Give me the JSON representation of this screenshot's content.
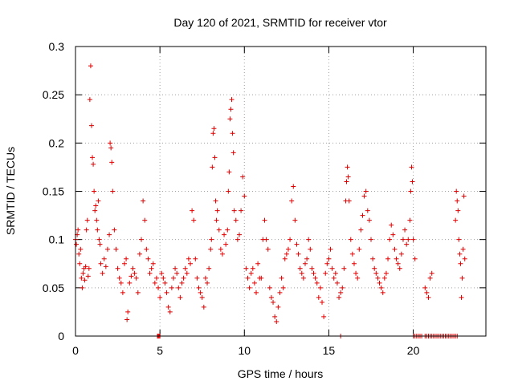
{
  "chart_data": {
    "type": "scatter",
    "title": "Day 120 of 2021, SRMTID for receiver vtor",
    "xlabel": "GPS time / hours",
    "ylabel": "SRMTID / TECUs",
    "xlim": [
      0,
      24.3
    ],
    "ylim": [
      0,
      0.3
    ],
    "x_ticks": [
      0,
      5,
      10,
      15,
      20
    ],
    "x_tick_labels": [
      "0",
      "5",
      "10",
      "15",
      "20"
    ],
    "y_ticks": [
      0,
      0.05,
      0.1,
      0.15,
      0.2,
      0.25,
      0.3
    ],
    "y_tick_labels": [
      "0",
      "0.05",
      "0.1",
      "0.15",
      "0.2",
      "0.25",
      "0.3"
    ],
    "grid": true,
    "marker": "+",
    "color": "#e00000",
    "series": [
      {
        "name": "SRMTID",
        "points": [
          [
            0.0,
            0.1
          ],
          [
            0.05,
            0.095
          ],
          [
            0.1,
            0.105
          ],
          [
            0.15,
            0.11
          ],
          [
            0.2,
            0.085
          ],
          [
            0.25,
            0.075
          ],
          [
            0.3,
            0.09
          ],
          [
            0.35,
            0.06
          ],
          [
            0.4,
            0.05
          ],
          [
            0.45,
            0.065
          ],
          [
            0.5,
            0.07
          ],
          [
            0.55,
            0.058
          ],
          [
            0.6,
            0.072
          ],
          [
            0.65,
            0.11
          ],
          [
            0.7,
            0.12
          ],
          [
            0.75,
            0.062
          ],
          [
            0.8,
            0.07
          ],
          [
            0.85,
            0.245
          ],
          [
            0.9,
            0.28
          ],
          [
            0.95,
            0.218
          ],
          [
            1.0,
            0.185
          ],
          [
            1.05,
            0.178
          ],
          [
            1.1,
            0.15
          ],
          [
            1.15,
            0.13
          ],
          [
            1.2,
            0.135
          ],
          [
            1.25,
            0.12
          ],
          [
            1.3,
            0.11
          ],
          [
            1.35,
            0.14
          ],
          [
            1.4,
            0.1
          ],
          [
            1.45,
            0.095
          ],
          [
            1.5,
            0.075
          ],
          [
            1.6,
            0.065
          ],
          [
            1.7,
            0.08
          ],
          [
            1.8,
            0.072
          ],
          [
            1.9,
            0.09
          ],
          [
            2.0,
            0.105
          ],
          [
            2.05,
            0.2
          ],
          [
            2.1,
            0.195
          ],
          [
            2.15,
            0.18
          ],
          [
            2.2,
            0.15
          ],
          [
            2.3,
            0.11
          ],
          [
            2.4,
            0.09
          ],
          [
            2.5,
            0.07
          ],
          [
            2.6,
            0.06
          ],
          [
            2.7,
            0.055
          ],
          [
            2.8,
            0.045
          ],
          [
            2.9,
            0.075
          ],
          [
            3.0,
            0.08
          ],
          [
            3.05,
            0.017
          ],
          [
            3.1,
            0.025
          ],
          [
            3.2,
            0.055
          ],
          [
            3.3,
            0.062
          ],
          [
            3.4,
            0.07
          ],
          [
            3.5,
            0.065
          ],
          [
            3.6,
            0.06
          ],
          [
            3.7,
            0.045
          ],
          [
            3.8,
            0.085
          ],
          [
            3.9,
            0.1
          ],
          [
            4.0,
            0.14
          ],
          [
            4.1,
            0.12
          ],
          [
            4.2,
            0.09
          ],
          [
            4.3,
            0.08
          ],
          [
            4.4,
            0.065
          ],
          [
            4.5,
            0.07
          ],
          [
            4.6,
            0.075
          ],
          [
            4.7,
            0.055
          ],
          [
            4.8,
            0.06
          ],
          [
            4.9,
            0.05
          ],
          [
            5.0,
            0.04
          ],
          [
            5.1,
            0.065
          ],
          [
            5.2,
            0.06
          ],
          [
            5.3,
            0.055
          ],
          [
            5.4,
            0.045
          ],
          [
            5.5,
            0.03
          ],
          [
            5.6,
            0.025
          ],
          [
            5.7,
            0.05
          ],
          [
            5.8,
            0.06
          ],
          [
            5.9,
            0.07
          ],
          [
            6.0,
            0.065
          ],
          [
            6.1,
            0.05
          ],
          [
            6.2,
            0.04
          ],
          [
            6.3,
            0.055
          ],
          [
            6.4,
            0.06
          ],
          [
            6.5,
            0.07
          ],
          [
            6.6,
            0.065
          ],
          [
            6.7,
            0.08
          ],
          [
            6.8,
            0.075
          ],
          [
            6.9,
            0.13
          ],
          [
            7.0,
            0.12
          ],
          [
            7.1,
            0.08
          ],
          [
            7.2,
            0.06
          ],
          [
            7.3,
            0.05
          ],
          [
            7.4,
            0.045
          ],
          [
            7.5,
            0.04
          ],
          [
            7.6,
            0.03
          ],
          [
            7.7,
            0.06
          ],
          [
            7.8,
            0.055
          ],
          [
            7.9,
            0.07
          ],
          [
            8.0,
            0.09
          ],
          [
            8.05,
            0.1
          ],
          [
            8.1,
            0.175
          ],
          [
            8.15,
            0.21
          ],
          [
            8.2,
            0.215
          ],
          [
            8.25,
            0.185
          ],
          [
            8.3,
            0.14
          ],
          [
            8.35,
            0.12
          ],
          [
            8.4,
            0.13
          ],
          [
            8.5,
            0.11
          ],
          [
            8.6,
            0.09
          ],
          [
            8.7,
            0.085
          ],
          [
            8.8,
            0.105
          ],
          [
            8.9,
            0.095
          ],
          [
            9.0,
            0.11
          ],
          [
            9.05,
            0.15
          ],
          [
            9.1,
            0.17
          ],
          [
            9.15,
            0.225
          ],
          [
            9.2,
            0.235
          ],
          [
            9.25,
            0.245
          ],
          [
            9.3,
            0.21
          ],
          [
            9.35,
            0.19
          ],
          [
            9.4,
            0.13
          ],
          [
            9.5,
            0.12
          ],
          [
            9.6,
            0.1
          ],
          [
            9.7,
            0.105
          ],
          [
            9.8,
            0.13
          ],
          [
            9.9,
            0.165
          ],
          [
            10.0,
            0.145
          ],
          [
            10.1,
            0.07
          ],
          [
            10.2,
            0.06
          ],
          [
            10.3,
            0.05
          ],
          [
            10.4,
            0.065
          ],
          [
            10.5,
            0.07
          ],
          [
            10.6,
            0.055
          ],
          [
            10.7,
            0.045
          ],
          [
            10.8,
            0.075
          ],
          [
            10.9,
            0.06
          ],
          [
            11.0,
            0.06
          ],
          [
            11.1,
            0.1
          ],
          [
            11.2,
            0.12
          ],
          [
            11.3,
            0.1
          ],
          [
            11.4,
            0.09
          ],
          [
            11.5,
            0.05
          ],
          [
            11.6,
            0.04
          ],
          [
            11.7,
            0.035
          ],
          [
            11.8,
            0.02
          ],
          [
            11.9,
            0.015
          ],
          [
            12.0,
            0.03
          ],
          [
            12.1,
            0.045
          ],
          [
            12.2,
            0.06
          ],
          [
            12.3,
            0.05
          ],
          [
            12.4,
            0.08
          ],
          [
            12.5,
            0.085
          ],
          [
            12.6,
            0.09
          ],
          [
            12.7,
            0.1
          ],
          [
            12.8,
            0.14
          ],
          [
            12.9,
            0.155
          ],
          [
            13.0,
            0.12
          ],
          [
            13.1,
            0.095
          ],
          [
            13.2,
            0.085
          ],
          [
            13.3,
            0.07
          ],
          [
            13.4,
            0.065
          ],
          [
            13.5,
            0.06
          ],
          [
            13.6,
            0.075
          ],
          [
            13.7,
            0.08
          ],
          [
            13.8,
            0.1
          ],
          [
            13.9,
            0.09
          ],
          [
            14.0,
            0.07
          ],
          [
            14.1,
            0.065
          ],
          [
            14.2,
            0.06
          ],
          [
            14.3,
            0.055
          ],
          [
            14.4,
            0.04
          ],
          [
            14.5,
            0.05
          ],
          [
            14.6,
            0.035
          ],
          [
            14.7,
            0.02
          ],
          [
            14.8,
            0.065
          ],
          [
            14.9,
            0.075
          ],
          [
            15.0,
            0.08
          ],
          [
            15.1,
            0.09
          ],
          [
            15.2,
            0.07
          ],
          [
            15.3,
            0.06
          ],
          [
            15.4,
            0.065
          ],
          [
            15.5,
            0.055
          ],
          [
            15.6,
            0.04
          ],
          [
            15.7,
            0.045
          ],
          [
            15.8,
            0.05
          ],
          [
            15.9,
            0.07
          ],
          [
            16.0,
            0.14
          ],
          [
            16.05,
            0.16
          ],
          [
            16.1,
            0.175
          ],
          [
            16.15,
            0.165
          ],
          [
            16.2,
            0.14
          ],
          [
            16.3,
            0.1
          ],
          [
            16.4,
            0.085
          ],
          [
            16.5,
            0.075
          ],
          [
            16.6,
            0.065
          ],
          [
            16.7,
            0.06
          ],
          [
            16.8,
            0.09
          ],
          [
            16.9,
            0.11
          ],
          [
            17.0,
            0.125
          ],
          [
            17.1,
            0.145
          ],
          [
            17.2,
            0.15
          ],
          [
            17.3,
            0.13
          ],
          [
            17.4,
            0.12
          ],
          [
            17.5,
            0.1
          ],
          [
            17.6,
            0.08
          ],
          [
            17.7,
            0.07
          ],
          [
            17.8,
            0.065
          ],
          [
            17.9,
            0.06
          ],
          [
            18.0,
            0.055
          ],
          [
            18.1,
            0.05
          ],
          [
            18.2,
            0.045
          ],
          [
            18.3,
            0.06
          ],
          [
            18.4,
            0.065
          ],
          [
            18.5,
            0.08
          ],
          [
            18.6,
            0.1
          ],
          [
            18.7,
            0.115
          ],
          [
            18.8,
            0.105
          ],
          [
            18.9,
            0.09
          ],
          [
            19.0,
            0.08
          ],
          [
            19.1,
            0.075
          ],
          [
            19.2,
            0.07
          ],
          [
            19.3,
            0.085
          ],
          [
            19.4,
            0.1
          ],
          [
            19.5,
            0.11
          ],
          [
            19.6,
            0.095
          ],
          [
            19.7,
            0.1
          ],
          [
            19.8,
            0.12
          ],
          [
            19.85,
            0.15
          ],
          [
            19.9,
            0.175
          ],
          [
            19.95,
            0.16
          ],
          [
            20.0,
            0.1
          ],
          [
            20.1,
            0.08
          ],
          [
            20.7,
            0.05
          ],
          [
            20.8,
            0.045
          ],
          [
            20.9,
            0.04
          ],
          [
            21.0,
            0.06
          ],
          [
            21.1,
            0.065
          ],
          [
            22.5,
            0.12
          ],
          [
            22.55,
            0.15
          ],
          [
            22.6,
            0.14
          ],
          [
            22.65,
            0.13
          ],
          [
            22.7,
            0.1
          ],
          [
            22.75,
            0.085
          ],
          [
            22.8,
            0.075
          ],
          [
            22.85,
            0.04
          ],
          [
            22.9,
            0.06
          ],
          [
            22.95,
            0.09
          ],
          [
            23.0,
            0.145
          ],
          [
            23.05,
            0.08
          ],
          [
            4.85,
            0.0
          ],
          [
            4.9,
            0.0
          ],
          [
            4.95,
            0.0
          ],
          [
            5.0,
            0.0
          ],
          [
            15.7,
            0.0
          ],
          [
            20.0,
            0.0
          ],
          [
            20.1,
            0.0
          ],
          [
            20.2,
            0.0
          ],
          [
            20.3,
            0.0
          ],
          [
            20.4,
            0.0
          ],
          [
            20.5,
            0.0
          ],
          [
            20.7,
            0.0
          ],
          [
            20.8,
            0.0
          ],
          [
            20.9,
            0.0
          ],
          [
            21.0,
            0.0
          ],
          [
            21.1,
            0.0
          ],
          [
            21.2,
            0.0
          ],
          [
            21.3,
            0.0
          ],
          [
            21.4,
            0.0
          ],
          [
            21.5,
            0.0
          ],
          [
            21.6,
            0.0
          ],
          [
            21.7,
            0.0
          ],
          [
            21.8,
            0.0
          ],
          [
            21.9,
            0.0
          ],
          [
            22.0,
            0.0
          ],
          [
            22.1,
            0.0
          ],
          [
            22.2,
            0.0
          ],
          [
            22.3,
            0.0
          ],
          [
            22.4,
            0.0
          ],
          [
            22.5,
            0.0
          ],
          [
            22.6,
            0.0
          ]
        ]
      }
    ]
  }
}
